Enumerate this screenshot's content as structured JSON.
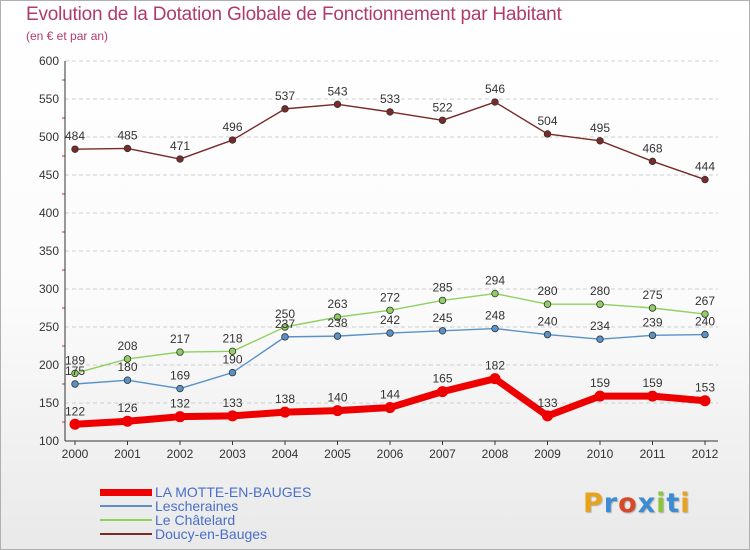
{
  "title": "Evolution de la Dotation Globale de Fonctionnement par Habitant",
  "subtitle": "(en € et par an)",
  "logo": {
    "text": "Proxiti",
    "colors": [
      "#e8a21c",
      "#3c8cd4",
      "#d64a2a",
      "#3c8cd4",
      "#8cc43a",
      "#3c8cd4",
      "#e8a21c"
    ]
  },
  "colors": {
    "title": "#b03a6e",
    "legend_text": "#4a6fc8",
    "axis": "#333333",
    "grid": "#cfcfcf"
  },
  "chart_data": {
    "type": "line",
    "title": "Evolution de la Dotation Globale de Fonctionnement par Habitant",
    "subtitle": "(en € et par an)",
    "xlabel": "",
    "ylabel": "",
    "x": [
      "2000",
      "2001",
      "2002",
      "2003",
      "2004",
      "2005",
      "2006",
      "2007",
      "2008",
      "2009",
      "2010",
      "2011",
      "2012"
    ],
    "ylim": [
      100,
      600
    ],
    "yticks": [
      100,
      150,
      200,
      250,
      300,
      350,
      400,
      450,
      500,
      550,
      600
    ],
    "grid": "horizontal",
    "legend_position": "bottom-left",
    "series": [
      {
        "name": "LA MOTTE-EN-BAUGES",
        "color": "#ee0000",
        "emphasis": true,
        "labels": true,
        "values": [
          122,
          126,
          132,
          133,
          138,
          140,
          144,
          165,
          182,
          133,
          159,
          159,
          153
        ]
      },
      {
        "name": "Lescheraines",
        "color": "#5a92c8",
        "emphasis": false,
        "labels": true,
        "values": [
          175,
          180,
          169,
          190,
          237,
          238,
          242,
          245,
          248,
          240,
          234,
          239,
          240
        ],
        "label_overrides": [
          "175",
          "180",
          "169",
          "190",
          "237",
          "238",
          "242",
          "245",
          "248",
          "240",
          "234",
          "239",
          "240"
        ]
      },
      {
        "name": "Le Châtelard",
        "color": "#90d060",
        "emphasis": false,
        "labels": true,
        "values": [
          189,
          208,
          217,
          218,
          250,
          263,
          272,
          285,
          294,
          280,
          280,
          275,
          267
        ]
      },
      {
        "name": "Doucy-en-Bauges",
        "color": "#7a2a2a",
        "emphasis": false,
        "labels": true,
        "values": [
          484,
          485,
          471,
          496,
          537,
          543,
          533,
          522,
          546,
          504,
          495,
          468,
          444
        ]
      }
    ]
  }
}
